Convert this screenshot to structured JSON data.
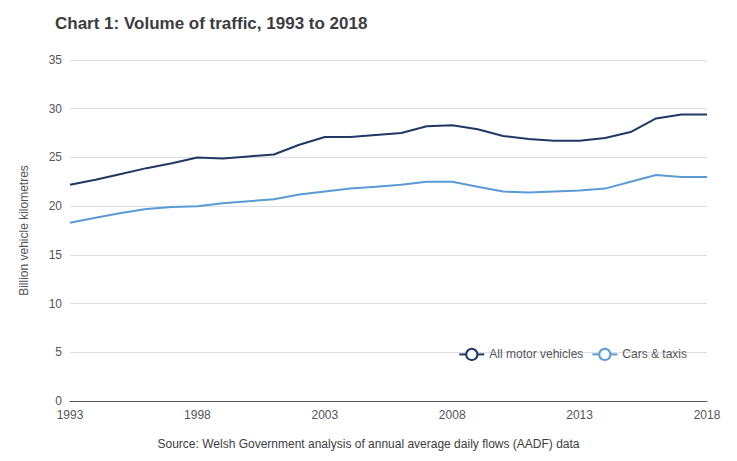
{
  "chart_data": {
    "type": "line",
    "title": "Chart 1: Volume of traffic, 1993 to 2018",
    "ylabel": "Billion vehicle kilometres",
    "annotations": [
      "Source: Welsh Government analysis of annual average daily flows (AADF) data"
    ],
    "x": [
      1993,
      1994,
      1995,
      1996,
      1997,
      1998,
      1999,
      2000,
      2001,
      2002,
      2003,
      2004,
      2005,
      2006,
      2007,
      2008,
      2009,
      2010,
      2011,
      2012,
      2013,
      2014,
      2015,
      2016,
      2017,
      2018
    ],
    "series": [
      {
        "name": "All motor vehicles",
        "color": "#1F3864",
        "values": [
          22.2,
          22.7,
          23.3,
          23.9,
          24.4,
          25.0,
          24.9,
          25.1,
          25.3,
          26.3,
          27.1,
          27.1,
          27.3,
          27.5,
          28.2,
          28.3,
          27.9,
          27.2,
          26.9,
          26.7,
          26.7,
          27.0,
          27.6,
          29.0,
          29.4,
          29.4
        ]
      },
      {
        "name": "Cars & taxis",
        "color": "#5B9BD5",
        "values": [
          18.3,
          18.8,
          19.3,
          19.7,
          19.9,
          20.0,
          20.3,
          20.5,
          20.7,
          21.2,
          21.5,
          21.8,
          22.0,
          22.2,
          22.5,
          22.5,
          22.0,
          21.5,
          21.4,
          21.5,
          21.6,
          21.8,
          22.5,
          23.2,
          23.0,
          23.0
        ]
      }
    ],
    "xlim": [
      1993,
      2018
    ],
    "xticks": [
      1993,
      1998,
      2003,
      2008,
      2013,
      2018
    ],
    "ylim": [
      0,
      35
    ],
    "yticks": [
      0,
      5,
      10,
      15,
      20,
      25,
      30,
      35
    ],
    "grid": true,
    "legend": "lower right"
  }
}
